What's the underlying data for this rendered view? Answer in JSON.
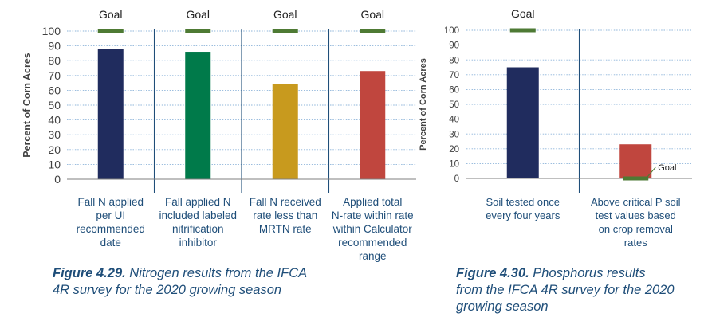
{
  "colors": {
    "grid": "#8db4d9",
    "axis": "#7f7f7f",
    "divider": "#1f4e79",
    "goal": "#4e7a34",
    "text": "#1f4e79",
    "tick": "#3f3f3f"
  },
  "chart_data": [
    {
      "type": "bar",
      "ylabel": "Percent of Corn Acres",
      "ylim": [
        0,
        100
      ],
      "yticks": [
        0,
        10,
        20,
        30,
        40,
        50,
        60,
        70,
        80,
        90,
        100
      ],
      "grid": true,
      "goal_label": "Goal",
      "categories": [
        [
          "Fall N applied",
          "per UI",
          "recommended",
          "date"
        ],
        [
          "Fall applied N",
          "included labeled",
          "nitrification",
          "inhibitor"
        ],
        [
          "Fall N received",
          "rate less than",
          "MRTN rate"
        ],
        [
          "Applied total",
          "N-rate within rate",
          "within Calculator",
          "recommended",
          "range"
        ]
      ],
      "values": [
        88,
        86,
        64,
        73
      ],
      "goals": [
        100,
        100,
        100,
        100
      ],
      "bar_colors": [
        "#202c5e",
        "#007a4a",
        "#c89a1e",
        "#c0463e"
      ]
    },
    {
      "type": "bar",
      "ylabel": "Percent of Corn Acres",
      "ylim": [
        0,
        100
      ],
      "yticks": [
        0,
        10,
        20,
        30,
        40,
        50,
        60,
        70,
        80,
        90,
        100
      ],
      "grid": true,
      "goal_label": "Goal",
      "categories": [
        [
          "Soil tested once",
          "every four years"
        ],
        [
          "Above critical P soil",
          "test values based",
          "on crop removal",
          "rates"
        ]
      ],
      "values": [
        75,
        23
      ],
      "goals": [
        100,
        0
      ],
      "bar_colors": [
        "#202c5e",
        "#c0463e"
      ]
    }
  ],
  "captions": [
    {
      "fig": "Figure 4.29.",
      "lines": [
        "Nitrogen results from the IFCA",
        "4R survey for the 2020 growing season"
      ]
    },
    {
      "fig": "Figure 4.30.",
      "lines": [
        "Phosphorus results",
        "from the IFCA 4R survey for the 2020",
        "growing season"
      ]
    }
  ]
}
